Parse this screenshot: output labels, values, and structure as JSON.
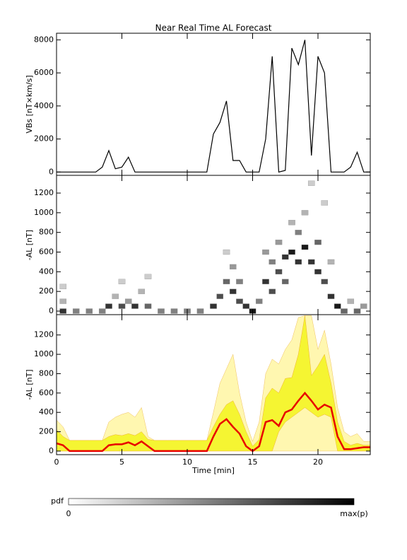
{
  "chart_data": [
    {
      "type": "line",
      "title": "Near Real Time AL Forecast",
      "ylabel": "VBs [nT×km/s]",
      "x": [
        0,
        0.5,
        1,
        1.5,
        2,
        2.5,
        3,
        3.5,
        4,
        4.5,
        5,
        5.5,
        6,
        6.5,
        7,
        7.5,
        8,
        8.5,
        9,
        9.5,
        10,
        10.5,
        11,
        11.5,
        12,
        12.5,
        13,
        13.5,
        14,
        14.5,
        15,
        15.5,
        16,
        16.5,
        17,
        17.5,
        18,
        18.5,
        19,
        19.5,
        20,
        20.5,
        21,
        21.5,
        22,
        22.5,
        23,
        23.5,
        24
      ],
      "series": [
        {
          "color": "#000000",
          "values": [
            0,
            0,
            0,
            0,
            0,
            0,
            0,
            300,
            1300,
            200,
            300,
            900,
            0,
            0,
            0,
            0,
            0,
            0,
            0,
            0,
            0,
            0,
            0,
            0,
            2300,
            3000,
            4300,
            700,
            700,
            0,
            0,
            0,
            2000,
            7000,
            0,
            100,
            7500,
            6500,
            8000,
            1000,
            7000,
            6000,
            0,
            0,
            0,
            300,
            1200,
            0,
            0
          ]
        }
      ],
      "xlim": [
        0,
        24
      ],
      "xticks": [
        0,
        5,
        10,
        15,
        20
      ],
      "ylim": [
        -200,
        8400
      ],
      "yticks": [
        0,
        2000,
        4000,
        6000,
        8000
      ]
    },
    {
      "type": "heatmap",
      "ylabel": "-AL [nT]",
      "cells": {
        "x": [
          0.5,
          0.5,
          0.5,
          1.5,
          2.5,
          3.5,
          4,
          4.5,
          5,
          5,
          5.5,
          6,
          6.5,
          7,
          7,
          8,
          9,
          10,
          11,
          12,
          12.5,
          13,
          13,
          13.5,
          13.5,
          14,
          14,
          14.5,
          15,
          15.5,
          16,
          16,
          16.5,
          16.5,
          17,
          17,
          17.5,
          17.5,
          18,
          18,
          18.5,
          18.5,
          19,
          19,
          19.5,
          19.5,
          20,
          20,
          20.5,
          20.5,
          21,
          21,
          21.5,
          22,
          22.5,
          23,
          23.5
        ],
        "y": [
          0,
          100,
          250,
          0,
          0,
          0,
          50,
          150,
          50,
          300,
          100,
          50,
          200,
          350,
          50,
          0,
          0,
          0,
          0,
          50,
          150,
          300,
          600,
          200,
          450,
          100,
          300,
          50,
          0,
          100,
          300,
          600,
          200,
          500,
          400,
          700,
          550,
          300,
          600,
          900,
          500,
          800,
          650,
          1000,
          1300,
          500,
          400,
          700,
          300,
          1100,
          150,
          500,
          50,
          0,
          100,
          0,
          50
        ],
        "p": [
          0.8,
          0.3,
          0.2,
          0.5,
          0.5,
          0.5,
          0.8,
          0.3,
          0.7,
          0.2,
          0.4,
          0.8,
          0.3,
          0.2,
          0.6,
          0.5,
          0.5,
          0.5,
          0.5,
          0.8,
          0.7,
          0.6,
          0.2,
          0.8,
          0.4,
          0.7,
          0.5,
          0.8,
          0.9,
          0.5,
          0.8,
          0.4,
          0.7,
          0.5,
          0.7,
          0.4,
          0.8,
          0.6,
          0.9,
          0.3,
          0.8,
          0.5,
          0.9,
          0.3,
          0.2,
          0.8,
          0.8,
          0.6,
          0.7,
          0.2,
          0.8,
          0.3,
          0.9,
          0.6,
          0.3,
          0.6,
          0.4
        ]
      },
      "xlim": [
        0,
        24
      ],
      "xticks": [
        0,
        5,
        10,
        15,
        20
      ],
      "ylim": [
        -36,
        1380
      ],
      "yticks": [
        0,
        200,
        400,
        600,
        800,
        1000,
        1200
      ]
    },
    {
      "type": "band",
      "ylabel": "-AL [nT]",
      "xlabel": "Time [min]",
      "x": [
        0,
        0.5,
        1,
        1.5,
        2,
        2.5,
        3,
        3.5,
        4,
        4.5,
        5,
        5.5,
        6,
        6.5,
        7,
        7.5,
        8,
        8.5,
        9,
        9.5,
        10,
        10.5,
        11,
        11.5,
        12,
        12.5,
        13,
        13.5,
        14,
        14.5,
        15,
        15.5,
        16,
        16.5,
        17,
        17.5,
        18,
        18.5,
        19,
        19.5,
        20,
        20.5,
        21,
        21.5,
        22,
        22.5,
        23,
        23.5,
        24
      ],
      "series": [
        {
          "color": "#fff7b0",
          "values": [
            320,
            250,
            110,
            110,
            110,
            110,
            110,
            110,
            300,
            350,
            380,
            400,
            350,
            450,
            150,
            110,
            110,
            110,
            110,
            110,
            110,
            110,
            110,
            110,
            400,
            700,
            850,
            1000,
            600,
            300,
            100,
            300,
            800,
            950,
            900,
            1050,
            1150,
            1380,
            1400,
            1400,
            1050,
            1250,
            900,
            450,
            200,
            150,
            180,
            100,
            100
          ]
        },
        {
          "color": "#f5f532",
          "values": [
            220,
            150,
            110,
            110,
            110,
            110,
            110,
            110,
            150,
            170,
            160,
            180,
            160,
            200,
            120,
            110,
            110,
            110,
            110,
            110,
            110,
            110,
            110,
            110,
            250,
            380,
            480,
            520,
            380,
            200,
            50,
            120,
            550,
            650,
            600,
            750,
            760,
            1000,
            1400,
            780,
            880,
            1000,
            700,
            300,
            100,
            60,
            80,
            60,
            60
          ],
          "lower": [
            0,
            0,
            0,
            0,
            0,
            0,
            0,
            0,
            0,
            0,
            0,
            0,
            0,
            0,
            0,
            0,
            0,
            0,
            0,
            0,
            0,
            0,
            0,
            0,
            0,
            0,
            0,
            0,
            0,
            0,
            0,
            0,
            0,
            0,
            200,
            300,
            350,
            400,
            450,
            400,
            350,
            380,
            350,
            0,
            0,
            0,
            0,
            0,
            0
          ]
        },
        {
          "color": "#e80000",
          "values": [
            80,
            60,
            0,
            0,
            0,
            0,
            0,
            0,
            60,
            70,
            70,
            90,
            60,
            100,
            50,
            0,
            0,
            0,
            0,
            0,
            0,
            0,
            0,
            0,
            150,
            280,
            330,
            250,
            180,
            50,
            0,
            50,
            300,
            320,
            260,
            400,
            430,
            520,
            600,
            520,
            430,
            480,
            450,
            150,
            20,
            20,
            30,
            40,
            40
          ]
        }
      ],
      "xlim": [
        0,
        24
      ],
      "xticks": [
        0,
        5,
        10,
        15,
        20
      ],
      "ylim": [
        -37,
        1410
      ],
      "yticks": [
        0,
        200,
        400,
        600,
        800,
        1000,
        1200
      ]
    }
  ],
  "colorbar": {
    "label": "pdf",
    "min_label": "0",
    "max_label": "max(p)"
  }
}
